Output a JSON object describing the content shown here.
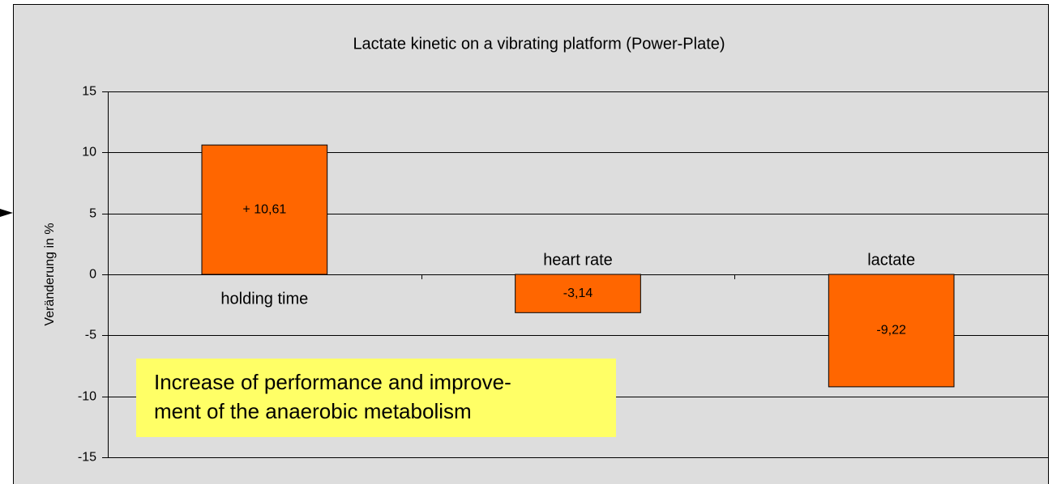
{
  "chart_data": {
    "type": "bar",
    "title": "Lactate kinetic on a vibrating platform (Power-Plate)",
    "y_label": "Veränderung in %",
    "categories": [
      "holding time",
      "heart rate",
      "lactate"
    ],
    "values": [
      10.61,
      -3.14,
      -9.22
    ],
    "value_labels": [
      "+ 10,61",
      "-3,14",
      "-9,22"
    ],
    "color": "#ff6600",
    "ylim": [
      -15,
      15
    ],
    "yticks": [
      -15,
      -10,
      -5,
      0,
      5,
      10,
      15
    ],
    "grid": true,
    "annotation": [
      "Increase of performance and improve-",
      "ment of the anaerobic metabolism"
    ]
  }
}
